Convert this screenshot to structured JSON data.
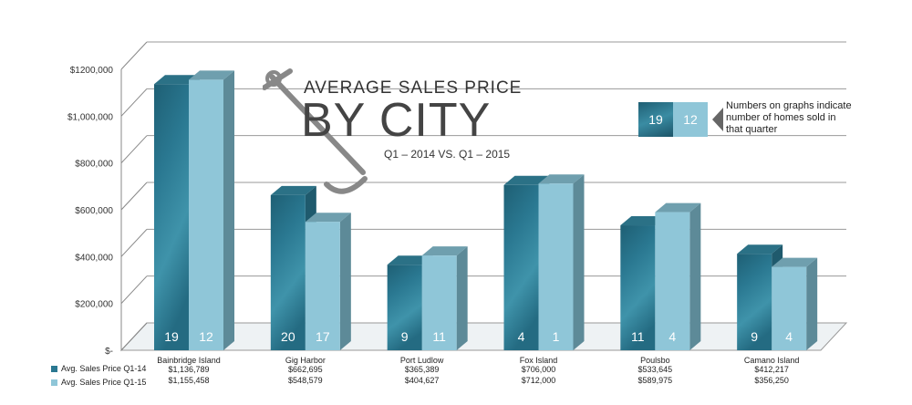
{
  "title": {
    "line1": "AVERAGE SALES PRICE",
    "line2": "BY CITY",
    "line3": "Q1 – 2014 VS. Q1 – 2015"
  },
  "note": {
    "sample_count_a": "19",
    "sample_count_b": "12",
    "text": "Numbers on graphs indicate number of homes sold in that quarter"
  },
  "colors": {
    "q1_14": "#2a7891",
    "q1_15": "#8fc6d8",
    "q1_14_dark": "#1f5a6d",
    "q1_15_side": "#5d8a98"
  },
  "chart_data": {
    "type": "bar",
    "categories": [
      "Bainbridge Island",
      "Gig Harbor",
      "Port Ludlow",
      "Fox Island",
      "Poulsbo",
      "Camano Island"
    ],
    "series": [
      {
        "name": "Avg. Sales Price Q1-14",
        "values": [
          1136789,
          662695,
          365389,
          706000,
          533645,
          412217
        ],
        "labels": [
          "$1,136,789",
          "$662,695",
          "$365,389",
          "$706,000",
          "$533,645",
          "$412,217"
        ],
        "counts": [
          "19",
          "20",
          "9",
          "4",
          "11",
          "9"
        ]
      },
      {
        "name": "Avg. Sales Price Q1-15",
        "values": [
          1155458,
          548579,
          404627,
          712000,
          589975,
          356250
        ],
        "labels": [
          "$1,155,458",
          "$548,579",
          "$404,627",
          "$712,000",
          "$589,975",
          "$356,250"
        ],
        "counts": [
          "12",
          "17",
          "11",
          "1",
          "4",
          "4"
        ]
      }
    ],
    "yticks": [
      "$-",
      "$200,000",
      "$400,000",
      "$600,000",
      "$800,000",
      "$1,000,000",
      "$1200,000"
    ],
    "ylim": [
      0,
      1200000
    ],
    "grid": true,
    "legend": "bottom-left"
  }
}
